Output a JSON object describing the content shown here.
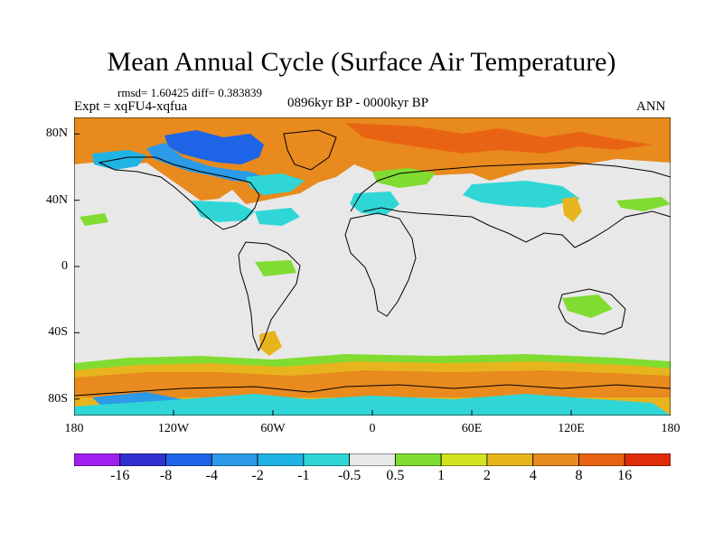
{
  "title": "Mean Annual Cycle (Surface Air Temperature)",
  "stats": "rmsd= 1.60425 diff= 0.383839",
  "experiment": "Expt = xqFU4-xqfua",
  "period": "0896kyr BP - 0000kyr BP",
  "season": "ANN",
  "lat_labels": [
    "80N",
    "40N",
    "0",
    "40S",
    "80S"
  ],
  "lon_labels": [
    "180",
    "120W",
    "60W",
    "0",
    "60E",
    "120E",
    "180"
  ],
  "colorbar": {
    "labels": [
      "-16",
      "-8",
      "-4",
      "-2",
      "-1",
      "-0.5",
      "0.5",
      "1",
      "2",
      "4",
      "8",
      "16"
    ],
    "colors": [
      "#a020f0",
      "#3030d0",
      "#1e64e6",
      "#2c9ae8",
      "#20b4e4",
      "#30d6d6",
      "#e8e8e8",
      "#80dc30",
      "#d2e420",
      "#e8b41e",
      "#e88a1e",
      "#e86414",
      "#e02c0a"
    ]
  },
  "colors": {
    "neutral": "#e8e8e8",
    "coast": "#000000"
  }
}
